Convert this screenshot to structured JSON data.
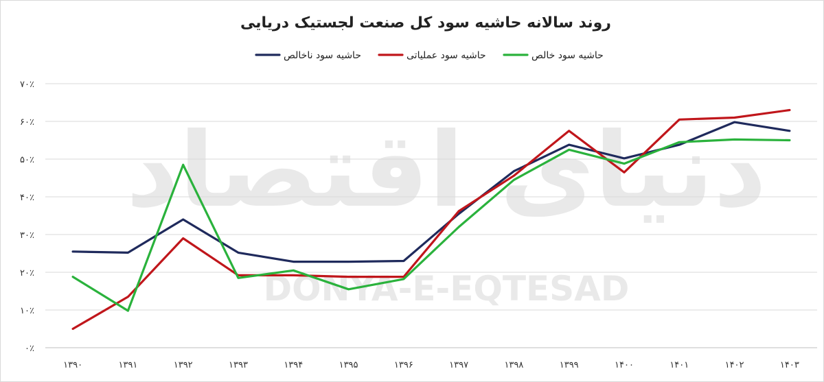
{
  "chart_data": {
    "type": "line",
    "title": "روند سالانه حاشیه سود کل صنعت لجستیک دریایی",
    "watermark": {
      "main": "دنیای اقتصاد",
      "sub": "DONYA-E-EQTESAD"
    },
    "categories": [
      "۱۳۹۰",
      "۱۳۹۱",
      "۱۳۹۲",
      "۱۳۹۳",
      "۱۳۹۴",
      "۱۳۹۵",
      "۱۳۹۶",
      "۱۳۹۷",
      "۱۳۹۸",
      "۱۳۹۹",
      "۱۴۰۰",
      "۱۴۰۱",
      "۱۴۰۲",
      "۱۴۰۳"
    ],
    "y_ticks": [
      "۰٪",
      "۱۰٪",
      "۲۰٪",
      "۳۰٪",
      "۴۰٪",
      "۵۰٪",
      "۶۰٪",
      "۷۰٪"
    ],
    "ylim": [
      0,
      70
    ],
    "grid": true,
    "legend_position": "top-center",
    "series": [
      {
        "name": "حاشیه سود ناخالص",
        "color": "#1f2a5c",
        "values": [
          25.5,
          25.2,
          34,
          25.2,
          22.8,
          22.8,
          23,
          35.5,
          46.8,
          53.8,
          50.2,
          53.8,
          59.8,
          57.5
        ]
      },
      {
        "name": "حاشیه سود عملیاتی",
        "color": "#c0161b",
        "values": [
          5,
          13.5,
          29,
          19.2,
          19.2,
          18.8,
          18.8,
          36.2,
          45.6,
          57.5,
          46.5,
          60.5,
          61,
          63
        ]
      },
      {
        "name": "حاشیه سود خالص",
        "color": "#2ab23c",
        "values": [
          18.8,
          9.8,
          48.5,
          18.5,
          20.5,
          15.5,
          18.2,
          32,
          44.5,
          52.5,
          48.8,
          54.5,
          55.2,
          55
        ]
      }
    ]
  }
}
